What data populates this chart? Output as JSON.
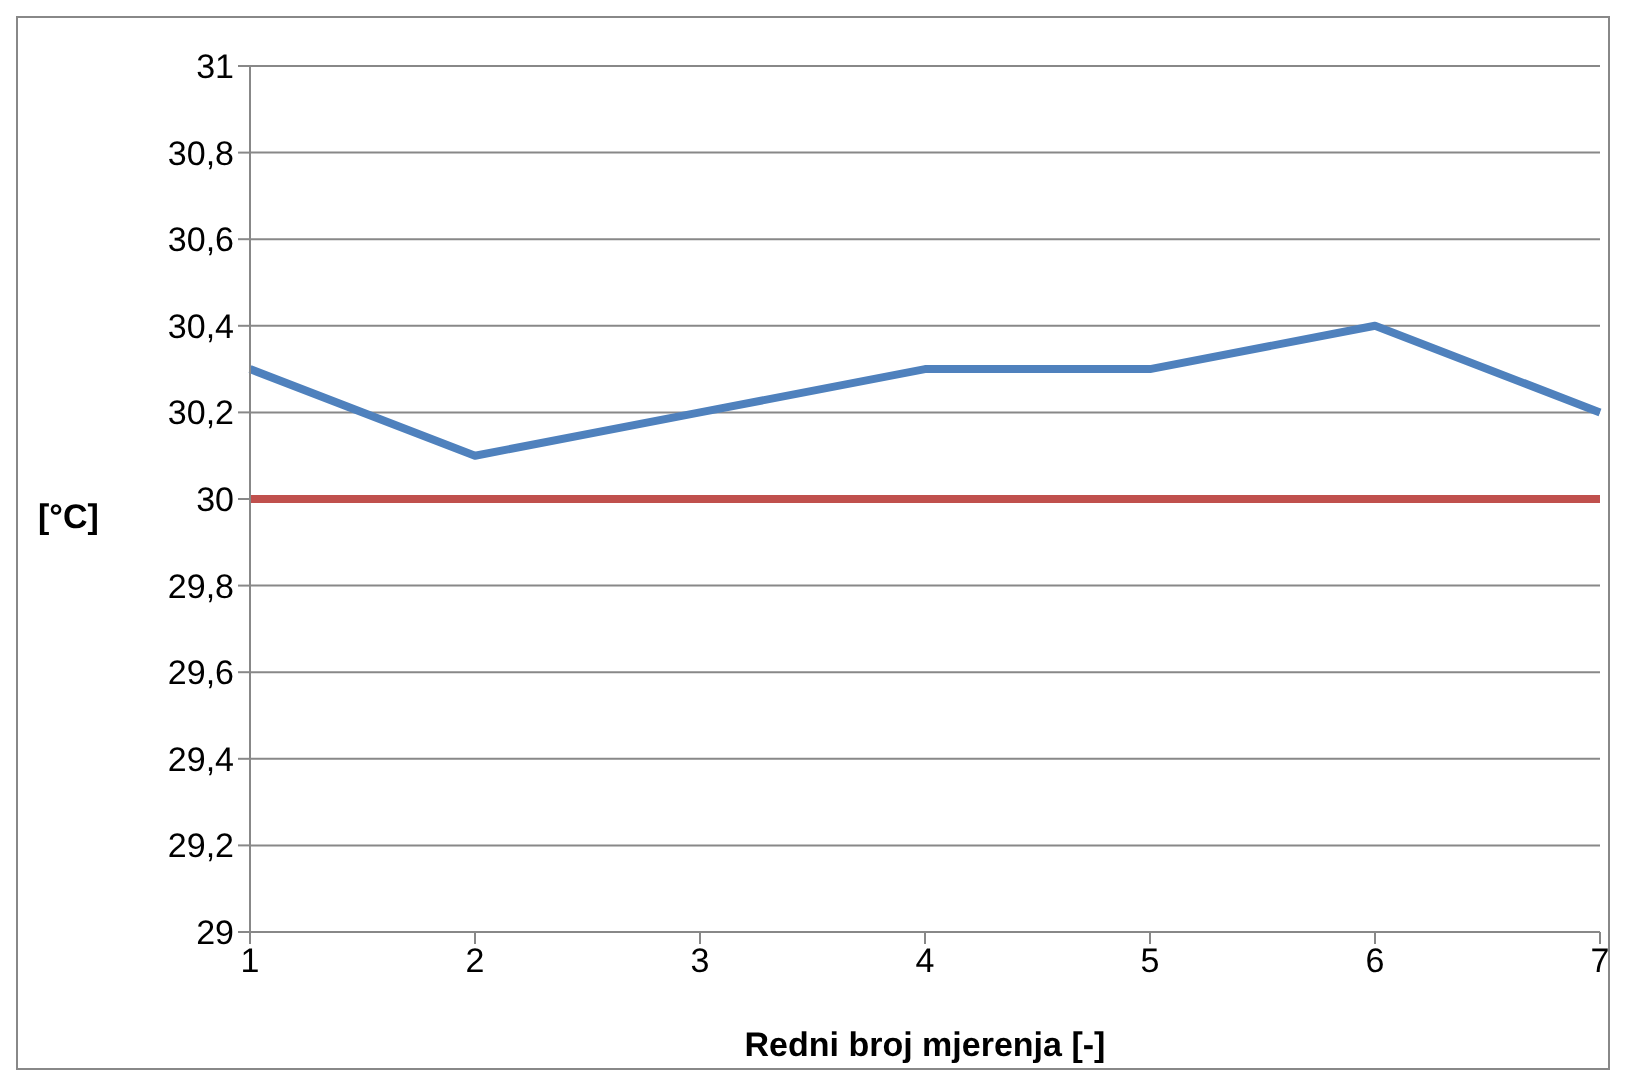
{
  "chart_data": {
    "type": "line",
    "xlabel": "Redni broj mjerenja [-]",
    "ylabel": "[°C]",
    "categories": [
      "1",
      "2",
      "3",
      "4",
      "5",
      "6",
      "7"
    ],
    "series": [
      {
        "color": "#4f81bd",
        "values": [
          30.3,
          30.1,
          30.2,
          30.3,
          30.3,
          30.4,
          30.2
        ]
      },
      {
        "color": "#c0504d",
        "values": [
          30,
          30,
          30,
          30,
          30,
          30,
          30
        ]
      }
    ],
    "ylim": [
      29,
      31
    ],
    "yticks": [
      29,
      {
        "value": 29.2,
        "label": "29,2"
      },
      {
        "value": 29.4,
        "label": "29,4"
      },
      {
        "value": 29.6,
        "label": "29,6"
      },
      {
        "value": 29.8,
        "label": "29,8"
      },
      30,
      {
        "value": 30.2,
        "label": "30,2"
      },
      {
        "value": 30.4,
        "label": "30,4"
      },
      {
        "value": 30.6,
        "label": "30,6"
      },
      {
        "value": 30.8,
        "label": "30,8"
      },
      31
    ],
    "grid": "y",
    "legend": false,
    "marker": "none",
    "line_style": "solid"
  }
}
